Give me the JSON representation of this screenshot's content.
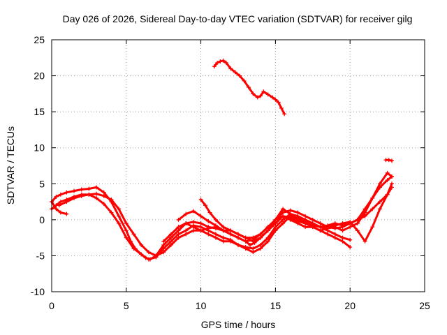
{
  "chart_data": {
    "type": "scatter",
    "title": "Day 026 of 2026, Sidereal Day-to-day VTEC variation (SDTVAR) for receiver gilg",
    "xlabel": "GPS time / hours",
    "ylabel": "SDTVAR / TECUs",
    "xlim": [
      0,
      25
    ],
    "ylim": [
      -10,
      25
    ],
    "xticks": [
      0,
      5,
      10,
      15,
      20,
      25
    ],
    "yticks": [
      -10,
      -5,
      0,
      5,
      10,
      15,
      20,
      25
    ],
    "grid": true,
    "marker": "plus",
    "color": "#ff0000",
    "series": [
      {
        "name": "track-1",
        "x": [
          0.0,
          0.3,
          0.6,
          1.0,
          1.5,
          2.0,
          2.5,
          3.0,
          3.5,
          4.0,
          4.5,
          5.0,
          5.3,
          5.6,
          6.0,
          6.3,
          6.6,
          7.0,
          7.5,
          8.0,
          8.5,
          9.0,
          9.5,
          10.0,
          10.5,
          11.0,
          11.5,
          12.0,
          12.5,
          13.0,
          13.3,
          13.6,
          14.0,
          14.5,
          15.0,
          15.5,
          16.0,
          16.5,
          17.0,
          17.5,
          18.0,
          18.5,
          19.0,
          19.5,
          20.0,
          20.5,
          21.0,
          21.5,
          22.0,
          22.5,
          22.8
        ],
        "y": [
          2.5,
          3.2,
          3.5,
          3.8,
          4.0,
          4.2,
          4.3,
          4.5,
          3.8,
          2.5,
          0.5,
          -1.5,
          -3.0,
          -4.0,
          -4.8,
          -5.3,
          -5.5,
          -5.0,
          -3.5,
          -2.5,
          -1.5,
          -0.5,
          -1.0,
          -1.5,
          -1.2,
          -1.0,
          -1.5,
          -2.0,
          -2.5,
          -3.0,
          -3.5,
          -3.2,
          -2.5,
          -1.5,
          -0.5,
          0.5,
          0.0,
          -0.5,
          -1.0,
          -1.0,
          -1.5,
          -1.2,
          -1.0,
          -1.5,
          -1.0,
          -0.5,
          1.0,
          3.0,
          5.0,
          6.5,
          6.0
        ]
      },
      {
        "name": "track-2",
        "x": [
          0.0,
          0.3,
          0.6,
          1.0,
          1.5,
          2.0,
          2.5,
          3.0,
          3.5,
          4.0,
          4.5,
          5.0,
          5.5,
          6.0,
          6.5,
          7.0,
          7.5,
          8.0,
          8.5,
          9.0,
          9.5,
          10.0,
          10.5,
          11.0,
          11.5,
          12.0,
          12.5,
          13.0,
          13.5,
          14.0,
          14.5,
          15.0,
          15.5,
          16.0,
          16.5,
          17.0,
          17.5,
          18.0,
          18.5,
          19.0,
          19.5,
          20.0
        ],
        "y": [
          1.5,
          2.0,
          2.5,
          2.8,
          3.2,
          3.5,
          3.5,
          3.0,
          2.2,
          1.0,
          -0.5,
          -2.5,
          -4.0,
          -4.8,
          -5.5,
          -5.2,
          -4.0,
          -3.0,
          -2.0,
          -1.5,
          -0.8,
          -1.0,
          -1.5,
          -2.0,
          -2.5,
          -2.8,
          -3.5,
          -4.0,
          -4.5,
          -4.0,
          -3.0,
          -1.5,
          -0.5,
          0.5,
          0.0,
          -0.5,
          -1.0,
          -1.5,
          -2.0,
          -2.5,
          -3.0,
          -3.8
        ]
      },
      {
        "name": "track-3",
        "x": [
          0.5,
          1.0,
          1.5,
          2.0,
          2.5,
          3.0,
          3.5,
          4.0,
          4.5,
          5.0,
          5.5,
          6.0,
          6.5,
          7.0,
          7.5,
          8.0,
          8.5,
          9.0,
          9.5,
          10.0,
          10.5,
          11.0,
          11.5,
          12.0,
          12.5,
          13.0,
          13.5,
          14.0,
          14.5,
          15.0,
          15.5,
          16.0,
          16.5,
          17.0,
          17.5,
          18.0,
          18.5,
          19.0,
          19.5,
          20.0
        ],
        "y": [
          2.0,
          2.5,
          3.0,
          3.3,
          3.5,
          3.6,
          3.3,
          2.8,
          1.5,
          -0.5,
          -2.0,
          -3.5,
          -4.5,
          -5.0,
          -4.5,
          -3.5,
          -2.5,
          -2.0,
          -1.5,
          -1.5,
          -2.0,
          -2.5,
          -3.0,
          -3.0,
          -3.5,
          -3.8,
          -4.0,
          -3.5,
          -2.5,
          -1.0,
          0.0,
          0.8,
          0.5,
          0.0,
          -0.5,
          -1.0,
          -1.5,
          -2.0,
          -2.5,
          -2.8
        ]
      },
      {
        "name": "track-4",
        "x": [
          0.0,
          0.3,
          0.6,
          1.0
        ],
        "y": [
          2.5,
          1.5,
          1.0,
          0.8
        ]
      },
      {
        "name": "track-5",
        "x": [
          7.5,
          8.0,
          8.5,
          9.0,
          9.5,
          10.0,
          10.5,
          11.0,
          11.5,
          12.0,
          12.5,
          13.0,
          13.5,
          14.0,
          14.5,
          15.0,
          15.5,
          16.0,
          16.5,
          17.0,
          17.5,
          18.0,
          18.5,
          19.0,
          19.5,
          20.0,
          20.5,
          21.0,
          21.5,
          22.0,
          22.5,
          22.8
        ],
        "y": [
          -3.0,
          -2.0,
          -1.0,
          -0.5,
          -0.3,
          -0.5,
          -1.0,
          -1.2,
          -1.5,
          -1.5,
          -2.0,
          -2.5,
          -3.0,
          -2.5,
          -1.5,
          0.0,
          1.5,
          0.8,
          0.3,
          -0.2,
          -0.5,
          -1.0,
          -0.8,
          -0.5,
          -0.8,
          -0.5,
          0.0,
          1.5,
          3.0,
          4.5,
          5.5,
          6.0
        ]
      },
      {
        "name": "track-6",
        "x": [
          8.5,
          9.0,
          9.5,
          10.0,
          10.5,
          11.0,
          11.5,
          12.0,
          12.5,
          13.0,
          13.5,
          14.0,
          14.5,
          15.0,
          15.5,
          16.0,
          16.5,
          17.0,
          17.5,
          18.0,
          18.5,
          19.0,
          19.5,
          20.0,
          20.5,
          21.0,
          21.5,
          22.0,
          22.5,
          22.8
        ],
        "y": [
          0.0,
          0.8,
          1.2,
          0.5,
          -0.2,
          -0.8,
          -1.5,
          -2.0,
          -2.5,
          -3.0,
          -2.8,
          -2.0,
          -1.0,
          0.0,
          1.0,
          1.3,
          1.0,
          0.5,
          0.0,
          -0.5,
          -1.0,
          -1.2,
          -1.0,
          -0.5,
          0.0,
          0.5,
          1.5,
          2.5,
          3.5,
          4.5
        ]
      },
      {
        "name": "track-7",
        "x": [
          10.0,
          10.3,
          10.6,
          11.0,
          11.5,
          12.0,
          12.5,
          13.0,
          13.5,
          14.0,
          14.5,
          15.0,
          15.5,
          16.0,
          16.5,
          17.0,
          17.5,
          18.0,
          18.5,
          19.0,
          19.5,
          20.0,
          20.5,
          21.0,
          21.5,
          22.0,
          22.5,
          22.8
        ],
        "y": [
          2.8,
          2.0,
          1.0,
          0.0,
          -1.0,
          -1.5,
          -2.0,
          -2.5,
          -2.5,
          -2.0,
          -1.0,
          0.0,
          0.5,
          0.3,
          -0.2,
          -0.5,
          -0.8,
          -1.0,
          -1.0,
          -0.8,
          -0.5,
          -0.3,
          -1.5,
          -3.0,
          -1.0,
          1.5,
          3.5,
          5.0
        ]
      },
      {
        "name": "track-8",
        "x": [
          10.9,
          11.1,
          11.3,
          11.5,
          11.7,
          12.0,
          12.3,
          12.6,
          12.9,
          13.2,
          13.5,
          13.8,
          14.0,
          14.2,
          14.5,
          14.8,
          15.0,
          15.2,
          15.4,
          15.6
        ],
        "y": [
          21.3,
          21.8,
          22.0,
          22.1,
          21.8,
          21.0,
          20.5,
          20.0,
          19.3,
          18.4,
          17.5,
          17.0,
          17.2,
          17.8,
          17.4,
          17.0,
          16.7,
          16.3,
          15.5,
          14.7
        ]
      },
      {
        "name": "track-9",
        "x": [
          22.4,
          22.6,
          22.8
        ],
        "y": [
          8.3,
          8.3,
          8.2
        ]
      }
    ]
  }
}
